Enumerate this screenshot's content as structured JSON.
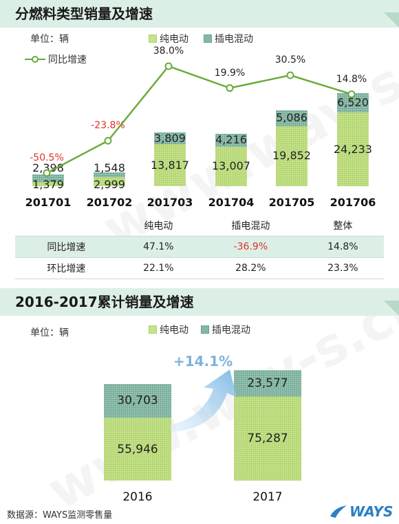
{
  "section1": {
    "title": "分燃料类型销量及增速",
    "unit": "单位：辆",
    "legend_ev": "纯电动",
    "legend_phev": "插电混动",
    "legend_growth": "同比增速"
  },
  "section2": {
    "title": "2016-2017累计销量及增速",
    "unit": "单位：辆",
    "legend_ev": "纯电动",
    "legend_phev": "插电混动",
    "growth_label": "+14.1%"
  },
  "stats_table": {
    "headers": [
      "",
      "纯电动",
      "插电混动",
      "整体"
    ],
    "rows": [
      {
        "label": "同比增速",
        "values": [
          "47.1%",
          "-36.9%",
          "14.8%"
        ]
      },
      {
        "label": "环比增速",
        "values": [
          "22.1%",
          "28.2%",
          "23.3%"
        ]
      }
    ]
  },
  "footer": "数据源：WAYS监测零售量",
  "logo_text": "WAYS",
  "watermark": "www.way-s.cn",
  "colors": {
    "ev": "#c6e28c",
    "phev": "#82b9a4",
    "line": "#6aaa3c",
    "negative": "#e0302a",
    "arrow": "#8fc3e8"
  },
  "chart_data": [
    {
      "type": "bar",
      "stacked": true,
      "categories": [
        "201701",
        "201702",
        "201703",
        "201704",
        "201705",
        "201706"
      ],
      "series": [
        {
          "name": "纯电动",
          "values": [
            1379,
            2999,
            13817,
            13007,
            19852,
            24233
          ]
        },
        {
          "name": "插电混动",
          "values": [
            2398,
            1548,
            3809,
            4216,
            5086,
            6520
          ]
        }
      ],
      "line_series": {
        "name": "同比增速",
        "values": [
          -50.5,
          -23.8,
          38.0,
          19.9,
          30.5,
          14.8
        ],
        "labels": [
          "-50.5%",
          "-23.8%",
          "38.0%",
          "19.9%",
          "30.5%",
          "14.8%"
        ]
      },
      "legend": "top",
      "grid": false
    },
    {
      "type": "bar",
      "stacked": true,
      "categories": [
        "2016",
        "2017"
      ],
      "series": [
        {
          "name": "纯电动",
          "values": [
            55946,
            75287
          ]
        },
        {
          "name": "插电混动",
          "values": [
            30703,
            23577
          ]
        }
      ],
      "legend": "top",
      "grid": false
    }
  ]
}
